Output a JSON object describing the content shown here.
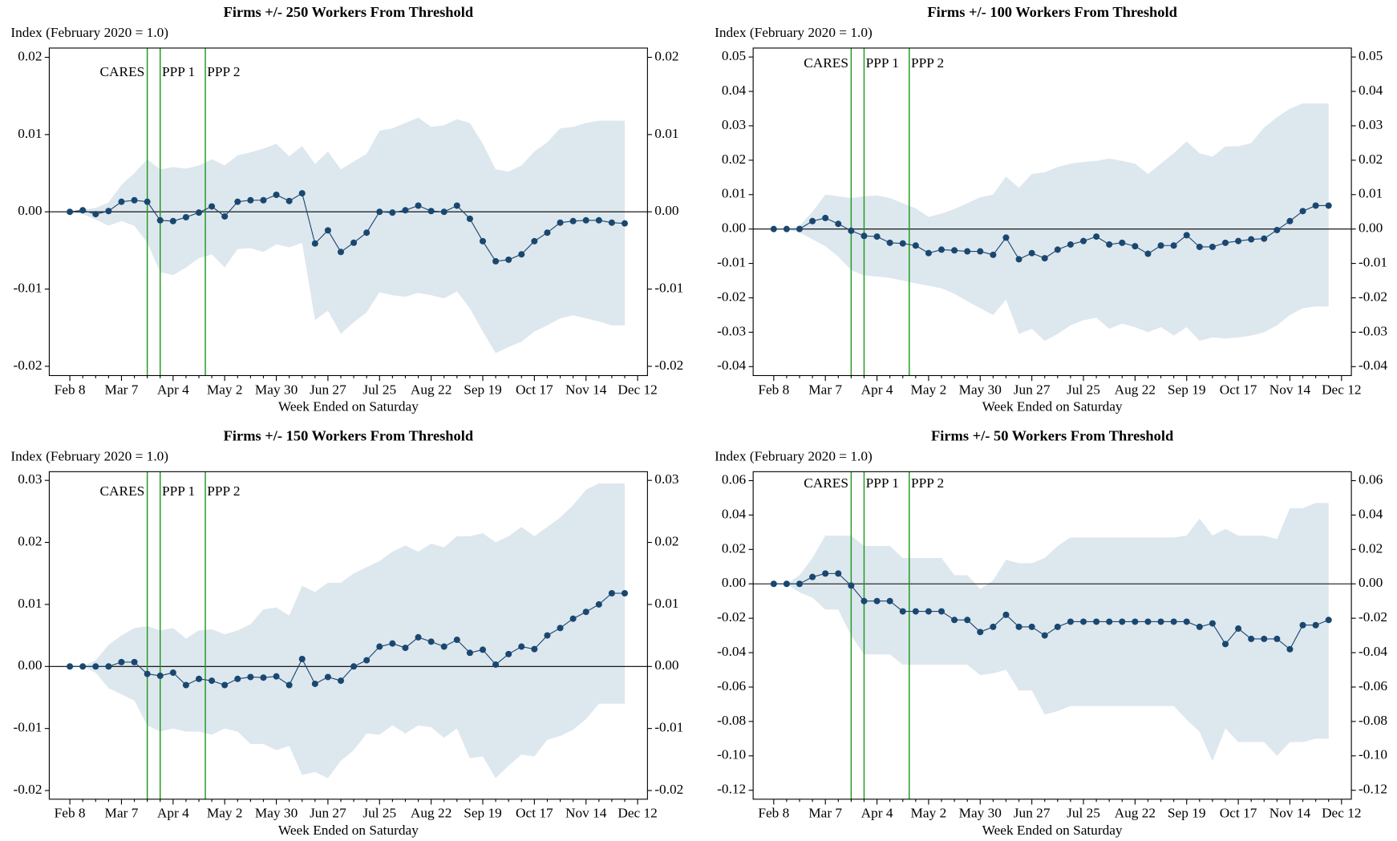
{
  "chart_data": [
    {
      "type": "line",
      "title": "Firms +/- 250 Workers From Threshold",
      "y_label": "Index (February 2020 = 1.0)",
      "x_label": "Week Ended on Saturday",
      "categories": [
        "Feb 8",
        null,
        null,
        null,
        "Mar 7",
        null,
        null,
        null,
        "Apr 4",
        null,
        null,
        null,
        "May 2",
        null,
        null,
        null,
        "May 30",
        null,
        null,
        null,
        "Jun 27",
        null,
        null,
        null,
        "Jul 25",
        null,
        null,
        null,
        "Aug 22",
        null,
        null,
        null,
        "Sep 19",
        null,
        null,
        null,
        "Oct 17",
        null,
        null,
        null,
        "Nov 14",
        null,
        null,
        null,
        "Dec 12"
      ],
      "series": [
        {
          "color": "#1a476f",
          "values": [
            0,
            0.0002,
            -0.0003,
            0.0001,
            0.0013,
            0.0015,
            0.0013,
            -0.0011,
            -0.0012,
            -0.0007,
            -0.0001,
            0.0007,
            -0.0006,
            0.0013,
            0.0015,
            0.0015,
            0.0022,
            0.0014,
            0.0024,
            -0.0041,
            -0.0024,
            -0.0052,
            -0.004,
            -0.0027,
            0,
            -0.0001,
            0.0002,
            0.0008,
            0.0001,
            0,
            0.0008,
            -0.0009,
            -0.0038,
            -0.0064,
            -0.0062,
            -0.0055,
            -0.0038,
            -0.0027,
            -0.0014,
            -0.0012,
            -0.0011,
            -0.0011,
            -0.0014,
            -0.0015,
            null
          ]
        }
      ],
      "band": {
        "color": "#dde7ee",
        "upper": [
          0,
          0.0003,
          0.0005,
          0.0012,
          0.0035,
          0.005,
          0.0068,
          0.0055,
          0.0058,
          0.0056,
          0.006,
          0.0068,
          0.006,
          0.0073,
          0.0077,
          0.0082,
          0.0088,
          0.0072,
          0.0085,
          0.0062,
          0.0078,
          0.0055,
          0.0065,
          0.0075,
          0.0105,
          0.0108,
          0.0115,
          0.0122,
          0.011,
          0.0112,
          0.012,
          0.0115,
          0.0088,
          0.0055,
          0.0052,
          0.006,
          0.0078,
          0.009,
          0.0108,
          0.011,
          0.0115,
          0.0118,
          0.0118,
          0.0118,
          null
        ],
        "lower": [
          0,
          -0.0003,
          -0.001,
          -0.0018,
          -0.0012,
          -0.0018,
          -0.004,
          -0.0078,
          -0.0082,
          -0.0072,
          -0.006,
          -0.0055,
          -0.0072,
          -0.0048,
          -0.0047,
          -0.0052,
          -0.0042,
          -0.0046,
          -0.004,
          -0.014,
          -0.0128,
          -0.0158,
          -0.0143,
          -0.013,
          -0.0104,
          -0.0108,
          -0.011,
          -0.0105,
          -0.0108,
          -0.0112,
          -0.0103,
          -0.0125,
          -0.0155,
          -0.0183,
          -0.0175,
          -0.0168,
          -0.0155,
          -0.0147,
          -0.0138,
          -0.0134,
          -0.0138,
          -0.0142,
          -0.0147,
          -0.0147,
          null
        ]
      },
      "events": [
        {
          "label": "CARES",
          "x": 6
        },
        {
          "label": "PPP 1",
          "x": 7
        },
        {
          "label": "PPP 2",
          "x": 10.5
        }
      ],
      "event_color": "#1f9a1f",
      "reference_line": 0,
      "ylim": [
        -0.0212,
        0.0212
      ],
      "yticks": [
        0.02,
        0.01,
        {
          "value": 0,
          "label": "0.00"
        },
        -0.01,
        -0.02
      ],
      "mirror_y_axis": true
    },
    {
      "type": "line",
      "title": "Firms +/- 100 Workers From Threshold",
      "y_label": "Index (February 2020 = 1.0)",
      "x_label": "Week Ended on Saturday",
      "categories": [
        "Feb 8",
        null,
        null,
        null,
        "Mar 7",
        null,
        null,
        null,
        "Apr 4",
        null,
        null,
        null,
        "May 2",
        null,
        null,
        null,
        "May 30",
        null,
        null,
        null,
        "Jun 27",
        null,
        null,
        null,
        "Jul 25",
        null,
        null,
        null,
        "Aug 22",
        null,
        null,
        null,
        "Sep 19",
        null,
        null,
        null,
        "Oct 17",
        null,
        null,
        null,
        "Nov 14",
        null,
        null,
        null,
        "Dec 12"
      ],
      "series": [
        {
          "color": "#1a476f",
          "values": [
            0,
            0,
            0,
            0.0023,
            0.0032,
            0.0015,
            -0.0005,
            -0.002,
            -0.0022,
            -0.004,
            -0.0042,
            -0.0048,
            -0.007,
            -0.006,
            -0.0062,
            -0.0065,
            -0.0065,
            -0.0075,
            -0.0025,
            -0.0088,
            -0.007,
            -0.0085,
            -0.006,
            -0.0045,
            -0.0035,
            -0.0022,
            -0.0045,
            -0.004,
            -0.005,
            -0.0072,
            -0.0048,
            -0.0048,
            -0.0018,
            -0.0052,
            -0.0052,
            -0.004,
            -0.0035,
            -0.003,
            -0.0028,
            -0.0003,
            0.0023,
            0.0052,
            0.0068,
            0.0068,
            null
          ]
        }
      ],
      "band": {
        "color": "#dde7ee",
        "upper": [
          0,
          0,
          0.001,
          0.005,
          0.01,
          0.0095,
          0.009,
          0.0095,
          0.0098,
          0.009,
          0.0075,
          0.006,
          0.0035,
          0.0045,
          0.0058,
          0.0075,
          0.0092,
          0.01,
          0.0152,
          0.012,
          0.016,
          0.0165,
          0.018,
          0.019,
          0.0195,
          0.0198,
          0.0205,
          0.0198,
          0.019,
          0.016,
          0.019,
          0.022,
          0.0255,
          0.022,
          0.021,
          0.024,
          0.024,
          0.025,
          0.0295,
          0.0325,
          0.035,
          0.0365,
          0.0365,
          0.0365,
          null
        ],
        "lower": [
          0,
          0,
          -0.001,
          -0.003,
          -0.005,
          -0.008,
          -0.012,
          -0.0135,
          -0.0138,
          -0.0142,
          -0.015,
          -0.0158,
          -0.0165,
          -0.0172,
          -0.0188,
          -0.021,
          -0.023,
          -0.025,
          -0.0205,
          -0.0305,
          -0.029,
          -0.0325,
          -0.0305,
          -0.028,
          -0.0265,
          -0.0258,
          -0.029,
          -0.0275,
          -0.0285,
          -0.03,
          -0.0285,
          -0.031,
          -0.0285,
          -0.0325,
          -0.0315,
          -0.0318,
          -0.0315,
          -0.031,
          -0.03,
          -0.028,
          -0.025,
          -0.023,
          -0.0225,
          -0.0225,
          null
        ]
      },
      "events": [
        {
          "label": "CARES",
          "x": 6
        },
        {
          "label": "PPP 1",
          "x": 7
        },
        {
          "label": "PPP 2",
          "x": 10.5
        }
      ],
      "event_color": "#1f9a1f",
      "reference_line": 0,
      "ylim": [
        -0.0426,
        0.0526
      ],
      "yticks": [
        0.05,
        0.04,
        0.03,
        0.02,
        0.01,
        {
          "value": 0,
          "label": "0.00"
        },
        -0.01,
        -0.02,
        -0.03,
        -0.04
      ],
      "mirror_y_axis": true
    },
    {
      "type": "line",
      "title": "Firms +/- 150 Workers From Threshold",
      "y_label": "Index (February 2020 = 1.0)",
      "x_label": "Week Ended on Saturday",
      "categories": [
        "Feb 8",
        null,
        null,
        null,
        "Mar 7",
        null,
        null,
        null,
        "Apr 4",
        null,
        null,
        null,
        "May 2",
        null,
        null,
        null,
        "May 30",
        null,
        null,
        null,
        "Jun 27",
        null,
        null,
        null,
        "Jul 25",
        null,
        null,
        null,
        "Aug 22",
        null,
        null,
        null,
        "Sep 19",
        null,
        null,
        null,
        "Oct 17",
        null,
        null,
        null,
        "Nov 14",
        null,
        null,
        null,
        "Dec 12"
      ],
      "series": [
        {
          "color": "#1a476f",
          "values": [
            0,
            0,
            0,
            0,
            0.0007,
            0.0007,
            -0.0012,
            -0.0015,
            -0.001,
            -0.003,
            -0.002,
            -0.0023,
            -0.003,
            -0.002,
            -0.0017,
            -0.0018,
            -0.0016,
            -0.003,
            0.0012,
            -0.0028,
            -0.0017,
            -0.0023,
            0,
            0.001,
            0.0032,
            0.0037,
            0.003,
            0.0047,
            0.004,
            0.0032,
            0.0043,
            0.0022,
            0.0027,
            0.0003,
            0.002,
            0.0032,
            0.0028,
            0.005,
            0.0062,
            0.0077,
            0.0088,
            0.01,
            0.0118,
            0.0118,
            null
          ]
        }
      ],
      "band": {
        "color": "#dde7ee",
        "upper": [
          0,
          0,
          0.001,
          0.0035,
          0.005,
          0.0062,
          0.0065,
          0.0058,
          0.0062,
          0.0045,
          0.0058,
          0.006,
          0.0052,
          0.0058,
          0.0068,
          0.0092,
          0.0095,
          0.0082,
          0.013,
          0.012,
          0.0135,
          0.0135,
          0.015,
          0.016,
          0.017,
          0.0185,
          0.0195,
          0.0185,
          0.0198,
          0.0192,
          0.021,
          0.021,
          0.0215,
          0.02,
          0.021,
          0.0225,
          0.021,
          0.0225,
          0.024,
          0.026,
          0.0285,
          0.0295,
          0.0295,
          0.0295,
          null
        ],
        "lower": [
          0,
          0,
          -0.001,
          -0.0035,
          -0.0045,
          -0.0055,
          -0.0095,
          -0.0105,
          -0.01,
          -0.0105,
          -0.0105,
          -0.011,
          -0.01,
          -0.0105,
          -0.0125,
          -0.0125,
          -0.0135,
          -0.0128,
          -0.0175,
          -0.017,
          -0.018,
          -0.0152,
          -0.0135,
          -0.0108,
          -0.011,
          -0.0095,
          -0.0108,
          -0.0095,
          -0.0098,
          -0.0115,
          -0.01,
          -0.0148,
          -0.0145,
          -0.018,
          -0.016,
          -0.0142,
          -0.0145,
          -0.0118,
          -0.0112,
          -0.0102,
          -0.0085,
          -0.006,
          -0.006,
          -0.006,
          null
        ]
      },
      "events": [
        {
          "label": "CARES",
          "x": 6
        },
        {
          "label": "PPP 1",
          "x": 7
        },
        {
          "label": "PPP 2",
          "x": 10.5
        }
      ],
      "event_color": "#1f9a1f",
      "reference_line": 0,
      "ylim": [
        -0.0214,
        0.0314
      ],
      "yticks": [
        0.03,
        0.02,
        0.01,
        {
          "value": 0,
          "label": "0.00"
        },
        -0.01,
        -0.02
      ],
      "mirror_y_axis": true
    },
    {
      "type": "line",
      "title": "Firms +/- 50 Workers From Threshold",
      "y_label": "Index (February 2020 = 1.0)",
      "x_label": "Week Ended on Saturday",
      "categories": [
        "Feb 8",
        null,
        null,
        null,
        "Mar 7",
        null,
        null,
        null,
        "Apr 4",
        null,
        null,
        null,
        "May 2",
        null,
        null,
        null,
        "May 30",
        null,
        null,
        null,
        "Jun 27",
        null,
        null,
        null,
        "Jul 25",
        null,
        null,
        null,
        "Aug 22",
        null,
        null,
        null,
        "Sep 19",
        null,
        null,
        null,
        "Oct 17",
        null,
        null,
        null,
        "Nov 14",
        null,
        null,
        null,
        "Dec 12"
      ],
      "series": [
        {
          "color": "#1a476f",
          "values": [
            0,
            0,
            0,
            0.004,
            0.006,
            0.006,
            -0.001,
            -0.01,
            -0.01,
            -0.01,
            -0.016,
            -0.016,
            -0.016,
            -0.016,
            -0.021,
            -0.021,
            -0.028,
            -0.025,
            -0.018,
            -0.025,
            -0.025,
            -0.03,
            -0.025,
            -0.022,
            -0.022,
            -0.022,
            -0.022,
            -0.022,
            -0.022,
            -0.022,
            -0.022,
            -0.022,
            -0.022,
            -0.025,
            -0.023,
            -0.035,
            -0.026,
            -0.032,
            -0.032,
            -0.032,
            -0.038,
            -0.024,
            -0.024,
            -0.021,
            null
          ]
        }
      ],
      "band": {
        "color": "#dde7ee",
        "upper": [
          0,
          0,
          0.005,
          0.015,
          0.028,
          0.028,
          0.028,
          0.022,
          0.022,
          0.022,
          0.015,
          0.015,
          0.015,
          0.015,
          0.005,
          0.005,
          -0.003,
          0.002,
          0.014,
          0.012,
          0.012,
          0.015,
          0.022,
          0.027,
          0.027,
          0.027,
          0.027,
          0.027,
          0.027,
          0.027,
          0.027,
          0.027,
          0.028,
          0.038,
          0.028,
          0.032,
          0.028,
          0.028,
          0.028,
          0.026,
          0.044,
          0.044,
          0.047,
          0.047,
          null
        ],
        "lower": [
          0,
          0,
          -0.005,
          -0.008,
          -0.015,
          -0.015,
          -0.03,
          -0.041,
          -0.041,
          -0.041,
          -0.047,
          -0.047,
          -0.047,
          -0.047,
          -0.047,
          -0.047,
          -0.053,
          -0.052,
          -0.05,
          -0.062,
          -0.062,
          -0.076,
          -0.074,
          -0.071,
          -0.071,
          -0.071,
          -0.071,
          -0.071,
          -0.071,
          -0.071,
          -0.071,
          -0.071,
          -0.079,
          -0.086,
          -0.103,
          -0.084,
          -0.092,
          -0.092,
          -0.092,
          -0.1,
          -0.092,
          -0.092,
          -0.09,
          -0.09,
          null
        ]
      },
      "events": [
        {
          "label": "CARES",
          "x": 6
        },
        {
          "label": "PPP 1",
          "x": 7
        },
        {
          "label": "PPP 2",
          "x": 10.5
        }
      ],
      "event_color": "#1f9a1f",
      "reference_line": 0,
      "ylim": [
        -0.1252,
        0.0652
      ],
      "yticks": [
        0.06,
        0.04,
        0.02,
        {
          "value": 0,
          "label": "0.00"
        },
        -0.02,
        -0.04,
        -0.06,
        -0.08,
        {
          "value": -0.1,
          "label": "-0.10"
        },
        -0.12
      ],
      "mirror_y_axis": true
    }
  ]
}
